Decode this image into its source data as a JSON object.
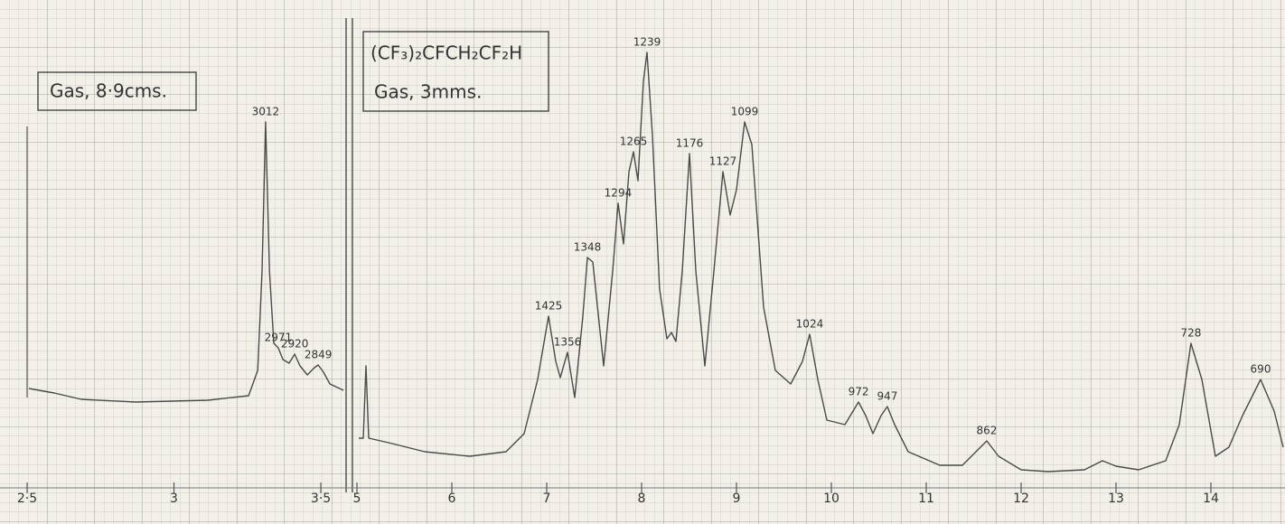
{
  "chart_data": [
    {
      "type": "line",
      "title": "Gas, 8·9cms.",
      "color": "#4a4a4a",
      "x": [
        2.506,
        2.592,
        2.685,
        2.869,
        3.115,
        3.254,
        3.285,
        3.3,
        3.312,
        3.325,
        3.34,
        3.355,
        3.371,
        3.392,
        3.411,
        3.429,
        3.454,
        3.478,
        3.491,
        3.509,
        3.531,
        3.577
      ],
      "values": [
        22,
        21,
        19.6,
        19,
        19.4,
        20.4,
        26,
        48,
        81,
        48,
        32,
        31,
        28.4,
        27.6,
        29.6,
        27,
        25,
        26.6,
        27.2,
        25.6,
        23,
        21.6
      ],
      "xlim": [
        2.5,
        3.586
      ],
      "ylim": [
        0,
        100
      ],
      "xticks": [
        {
          "value": 2.5,
          "label": "2·5"
        },
        3,
        {
          "value": 3.5,
          "label": "3·5"
        }
      ],
      "peaks": [
        {
          "label": "3012",
          "x": 3.312,
          "y": 81
        },
        {
          "label": "2971",
          "x": 3.355,
          "y": 31
        },
        {
          "label": "2920",
          "x": 3.411,
          "y": 29.6
        },
        {
          "label": "2849",
          "x": 3.491,
          "y": 27.2
        }
      ]
    },
    {
      "type": "line",
      "title": "(CF₃)₂CFCH₂CF₂H",
      "subtitle": "Gas, 3mms.",
      "color": "#4a4a4a",
      "x": [
        5.019,
        5.067,
        5.095,
        5.124,
        5.333,
        5.714,
        6.19,
        6.571,
        6.762,
        6.905,
        7.019,
        7.095,
        7.143,
        7.219,
        7.295,
        7.381,
        7.429,
        7.486,
        7.6,
        7.695,
        7.752,
        7.81,
        7.867,
        7.914,
        7.962,
        8.019,
        8.057,
        8.114,
        8.19,
        8.267,
        8.314,
        8.362,
        8.429,
        8.505,
        8.571,
        8.667,
        8.762,
        8.857,
        8.933,
        9.0,
        9.086,
        9.162,
        9.286,
        9.41,
        9.571,
        9.695,
        9.771,
        9.857,
        9.952,
        10.143,
        10.286,
        10.362,
        10.438,
        10.524,
        10.59,
        10.667,
        10.81,
        11.143,
        11.381,
        11.524,
        11.638,
        11.762,
        12.0,
        12.286,
        12.667,
        12.857,
        13.0,
        13.238,
        13.524,
        13.667,
        13.79,
        13.905,
        14.048,
        14.19,
        14.333,
        14.524,
        14.667,
        14.762
      ],
      "values": [
        11,
        11,
        27,
        11,
        10,
        8,
        7,
        8,
        12,
        24,
        38,
        28,
        24.4,
        30,
        20,
        38,
        51,
        50,
        27,
        48,
        63,
        54,
        70,
        74.4,
        68,
        90,
        96.4,
        78,
        44,
        33,
        34.4,
        32.4,
        48,
        74,
        48,
        27,
        48,
        70,
        60.4,
        66,
        81,
        76,
        40,
        26,
        23,
        28,
        34,
        24,
        15,
        14,
        19,
        16,
        12,
        16,
        18,
        14,
        8,
        5,
        5,
        8,
        10.4,
        7,
        4,
        3.6,
        4,
        6,
        4.8,
        4,
        6,
        14,
        32,
        24,
        7,
        9,
        16,
        24,
        17,
        9
      ],
      "xlim": [
        5,
        14.762
      ],
      "ylim": [
        0,
        100
      ],
      "xticks": [
        5,
        6,
        7,
        8,
        9,
        10,
        11,
        12,
        13,
        14
      ],
      "peaks": [
        {
          "label": "1425",
          "x": 7.019,
          "y": 38
        },
        {
          "label": "1356",
          "x": 7.219,
          "y": 30
        },
        {
          "label": "1348",
          "x": 7.429,
          "y": 51
        },
        {
          "label": "1294",
          "x": 7.752,
          "y": 63
        },
        {
          "label": "1265",
          "x": 7.914,
          "y": 74.4
        },
        {
          "label": "1239",
          "x": 8.057,
          "y": 96.4
        },
        {
          "label": "1176",
          "x": 8.505,
          "y": 74
        },
        {
          "label": "1127",
          "x": 8.857,
          "y": 70
        },
        {
          "label": "1099",
          "x": 9.086,
          "y": 81
        },
        {
          "label": "1024",
          "x": 9.771,
          "y": 34
        },
        {
          "label": "972",
          "x": 10.286,
          "y": 19
        },
        {
          "label": "947",
          "x": 10.59,
          "y": 18
        },
        {
          "label": "862",
          "x": 11.638,
          "y": 10.4
        },
        {
          "label": "728",
          "x": 13.79,
          "y": 32
        },
        {
          "label": "690",
          "x": 14.524,
          "y": 24
        }
      ]
    }
  ]
}
